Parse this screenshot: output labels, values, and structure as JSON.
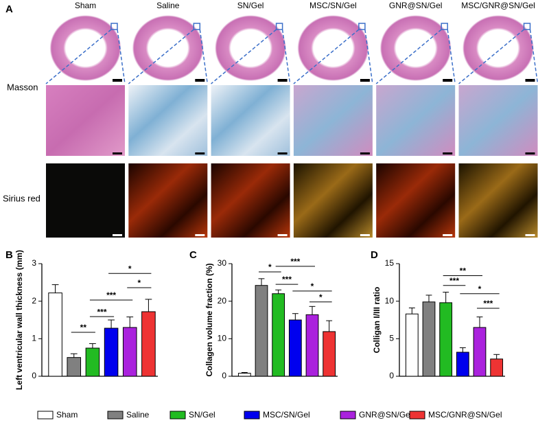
{
  "figure": {
    "panel_labels": [
      "A",
      "B",
      "C",
      "D"
    ],
    "columns": [
      "Sham",
      "Saline",
      "SN/Gel",
      "MSC/SN/Gel",
      "GNR@SN/Gel",
      "MSC/GNR@SN/Gel"
    ],
    "rows": [
      "Masson",
      "Sirius red"
    ]
  },
  "chart_data": [
    {
      "type": "bar",
      "ylabel": "Left ventricular wall thickness (mm)",
      "categories": [
        "Sham",
        "Saline",
        "SN/Gel",
        "MSC/SN/Gel",
        "GNR@SN/Gel",
        "MSC/GNR@SN/Gel"
      ],
      "colors": [
        "#ffffff",
        "#808080",
        "#22bb22",
        "#0000ee",
        "#aa22dd",
        "#ee3333"
      ],
      "values": [
        2.22,
        0.5,
        0.75,
        1.28,
        1.3,
        1.72
      ],
      "errors": [
        0.22,
        0.1,
        0.12,
        0.22,
        0.28,
        0.33
      ],
      "ylim": [
        0,
        3
      ],
      "yticks": [
        0,
        1,
        2,
        3
      ],
      "annotations": [
        "*",
        "*",
        "***",
        "***",
        "**"
      ]
    },
    {
      "type": "bar",
      "ylabel": "Collagen volume fraction (%)",
      "categories": [
        "Sham",
        "Saline",
        "SN/Gel",
        "MSC/SN/Gel",
        "GNR@SN/Gel",
        "MSC/GNR@SN/Gel"
      ],
      "colors": [
        "#ffffff",
        "#808080",
        "#22bb22",
        "#0000ee",
        "#aa22dd",
        "#ee3333"
      ],
      "values": [
        0.8,
        24.2,
        22,
        15,
        16.4,
        11.9
      ],
      "errors": [
        0.2,
        1.8,
        1,
        1.7,
        2.2,
        2.9
      ],
      "ylim": [
        0,
        30
      ],
      "yticks": [
        0,
        10,
        20,
        30
      ],
      "annotations": [
        "***",
        "*",
        "***",
        "*",
        "*"
      ]
    },
    {
      "type": "bar",
      "ylabel": "Colligan I/III ratio",
      "categories": [
        "Sham",
        "Saline",
        "SN/Gel",
        "MSC/SN/Gel",
        "GNR@SN/Gel",
        "MSC/GNR@SN/Gel"
      ],
      "colors": [
        "#ffffff",
        "#808080",
        "#22bb22",
        "#0000ee",
        "#aa22dd",
        "#ee3333"
      ],
      "values": [
        8.3,
        9.9,
        9.8,
        3.2,
        6.5,
        2.3
      ],
      "errors": [
        0.8,
        0.9,
        1.4,
        0.6,
        1.4,
        0.6
      ],
      "ylim": [
        0,
        15
      ],
      "yticks": [
        0,
        5,
        10,
        15
      ],
      "annotations": [
        "**",
        "***",
        "*",
        "***"
      ]
    }
  ]
}
